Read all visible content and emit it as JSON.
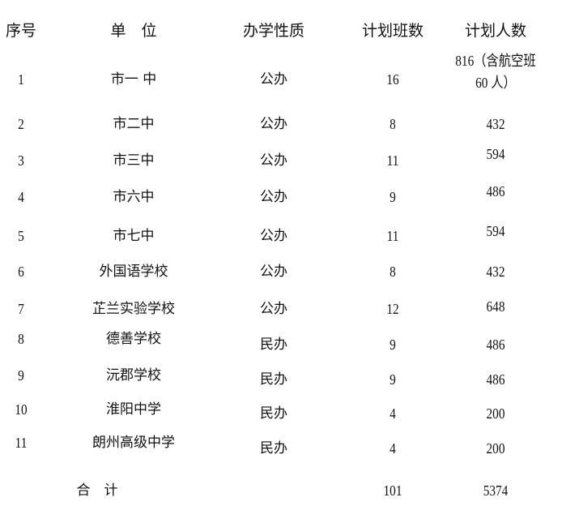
{
  "header": {
    "seq": "序号",
    "unit": "单　位",
    "nature": "办学性质",
    "classes": "计划班数",
    "people": "计划人数"
  },
  "rows": [
    {
      "seq": "1",
      "unit": "市一 中",
      "nature": "公办",
      "classes": "16",
      "people": "816（含航空班",
      "people_line2": "60 人）"
    },
    {
      "seq": "2",
      "unit": "市二中",
      "nature": "公办",
      "classes": "8",
      "people": "432"
    },
    {
      "seq": "3",
      "unit": "市三中",
      "nature": "公办",
      "classes": "11",
      "people": "594"
    },
    {
      "seq": "4",
      "unit": "市六中",
      "nature": "公办",
      "classes": "9",
      "people": "486"
    },
    {
      "seq": "5",
      "unit": "市七中",
      "nature": "公办",
      "classes": "11",
      "people": "594"
    },
    {
      "seq": "6",
      "unit": "外国语学校",
      "nature": "公办",
      "classes": "8",
      "people": "432"
    },
    {
      "seq": "7",
      "unit": "芷兰实验学校",
      "nature": "公办",
      "classes": "12",
      "people": "648"
    },
    {
      "seq": "8",
      "unit": "德善学校",
      "nature": "民办",
      "classes": "9",
      "people": "486"
    },
    {
      "seq": "9",
      "unit": "沅郡学校",
      "nature": "民办",
      "classes": "9",
      "people": "486"
    },
    {
      "seq": "10",
      "unit": "淮阳中学",
      "nature": "民办",
      "classes": "4",
      "people": "200"
    },
    {
      "seq": "11",
      "unit": "朗州高级中学",
      "nature": "民办",
      "classes": "4",
      "people": "200"
    }
  ],
  "total": {
    "label": "合　计",
    "classes": "101",
    "people": "5374"
  }
}
